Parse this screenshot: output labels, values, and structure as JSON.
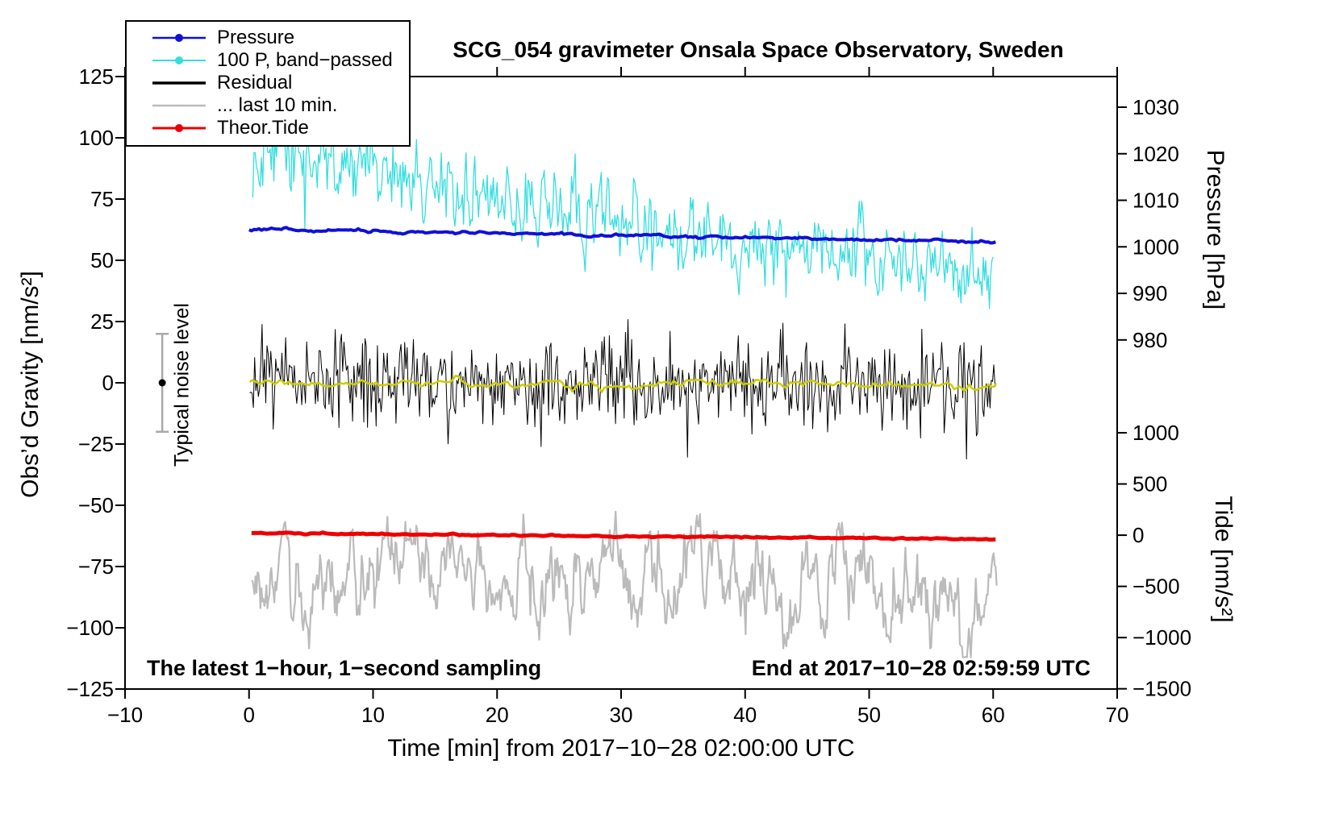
{
  "chart_data": {
    "type": "line",
    "title": "SCG_054 gravimeter Onsala Space Observatory, Sweden",
    "xlabel": "Time [min] from 2017−10−28 02:00:00 UTC",
    "ylabel_left": "Obs’d Gravity [nm/s²]",
    "ylabel_right_top": "Pressure [hPa]",
    "ylabel_right_bottom": "Tide [nm/s²]",
    "xlim": [
      -10,
      70
    ],
    "ylim_left": [
      -125,
      125
    ],
    "x_ticks": [
      -10,
      0,
      10,
      20,
      30,
      40,
      50,
      60,
      70
    ],
    "y_ticks_left": [
      125,
      100,
      75,
      50,
      25,
      0,
      -25,
      -50,
      -75,
      -100,
      -125
    ],
    "pressure_axis": {
      "ticks": [
        1030,
        1020,
        1010,
        1000,
        990,
        980
      ],
      "gravity_at_1000": 55.5,
      "gravity_per_hpa": 1.9
    },
    "tide_axis": {
      "ticks": [
        1000,
        500,
        0,
        -500,
        -1000,
        -1500
      ],
      "gravity_at_0": -62.2,
      "gravity_per_unit": 0.0418
    },
    "grid": false,
    "legend_position": "top-left",
    "legend": [
      {
        "label": "Pressure",
        "color": "#1010d8",
        "dot": true,
        "lw": 2.5
      },
      {
        "label": "100 P, band−passed",
        "color": "#35dede",
        "dot": true,
        "lw": 2
      },
      {
        "label": "Residual",
        "color": "#000000",
        "dot": false,
        "lw": 3.5
      },
      {
        "label": "... last 10 min.",
        "color": "#bbbbbb",
        "dot": false,
        "lw": 2.5
      },
      {
        "label": "Theor.Tide",
        "color": "#ee0000",
        "dot": true,
        "lw": 3
      }
    ],
    "annotations": {
      "noise_label": "Typical noise level",
      "noise_bar": {
        "x": -7,
        "y": 0,
        "half_range": 20,
        "color": "#a9a9a9",
        "dot_color": "#000000",
        "cap_half_width": 8,
        "dot_radius": 4.5
      },
      "sampling_note": "The latest 1−hour, 1−second sampling",
      "end_note": "End at 2017−10−28 02:59:59 UTC"
    },
    "series": [
      {
        "name": "100 P, band−passed",
        "axis": "gravity",
        "color": "#35dede",
        "width": 1.3,
        "gen": {
          "seed": 13,
          "x0": 0.3,
          "x1": 60.05,
          "step": 0.1,
          "sigma": 7.5,
          "smooth": 0.35,
          "spike_prob": 0.01,
          "spike_scale": 2.6,
          "clip": 55,
          "ymax": 121,
          "ymin": -118,
          "center": [
            [
              0.3,
              96
            ],
            [
              10,
              87
            ],
            [
              20,
              76
            ],
            [
              30,
              66
            ],
            [
              40,
              57
            ],
            [
              50,
              50
            ],
            [
              60,
              43
            ]
          ]
        }
      },
      {
        "name": "Residual",
        "axis": "gravity",
        "color": "#000000",
        "width": 1,
        "gen": {
          "seed": 7,
          "x0": 0.05,
          "x1": 60.25,
          "step": 0.1,
          "sigma": 9,
          "smooth": 0,
          "spike_prob": 0.02,
          "spike_scale": 2.0,
          "clip": 38,
          "center": [
            [
              0,
              0
            ],
            [
              60,
              0
            ]
          ]
        }
      },
      {
        "name": "Residual smoothed",
        "axis": "gravity",
        "color": "#cdcd00",
        "width": 2.5,
        "gen": {
          "seed": 5,
          "x0": 0.05,
          "x1": 60.25,
          "step": 0.2,
          "sigma": 0.7,
          "smooth": 0.75,
          "center": [
            [
              0,
              0.3
            ],
            [
              30,
              -0.3
            ],
            [
              60,
              -0.7
            ]
          ]
        }
      },
      {
        "name": "... last 10 min.",
        "axis": "tide",
        "color": "#bbbbbb",
        "width": 2.2,
        "gen": {
          "seed": 21,
          "x0": 0.2,
          "x1": 60.3,
          "step": 0.08,
          "sigma": 6.3,
          "smooth": 0.85,
          "clip": 33,
          "center": [
            [
              0,
              -80
            ],
            [
              60,
              -79
            ]
          ]
        }
      },
      {
        "name": "Pressure",
        "axis": "pressure",
        "color": "#1010d8",
        "width": 4,
        "gen": {
          "seed": 3,
          "x0": 0,
          "x1": 60.2,
          "step": 0.2,
          "sigma": 0.25,
          "smooth": 0.6,
          "center": [
            [
              0,
              62.6
            ],
            [
              10,
              61.9
            ],
            [
              20,
              61.1
            ],
            [
              30,
              60.2
            ],
            [
              40,
              59.3
            ],
            [
              50,
              58.4
            ],
            [
              60,
              57.6
            ]
          ]
        }
      },
      {
        "name": "Theor.Tide",
        "axis": "tide",
        "color": "#ee0000",
        "width": 5,
        "gen": {
          "seed": 9,
          "x0": 0.2,
          "x1": 60.4,
          "step": 0.25,
          "sigma": 0.15,
          "smooth": 0.5,
          "center": [
            [
              0,
              -61.4
            ],
            [
              15,
              -62.0
            ],
            [
              30,
              -62.6
            ],
            [
              45,
              -63.2
            ],
            [
              60,
              -63.8
            ]
          ]
        }
      }
    ]
  }
}
